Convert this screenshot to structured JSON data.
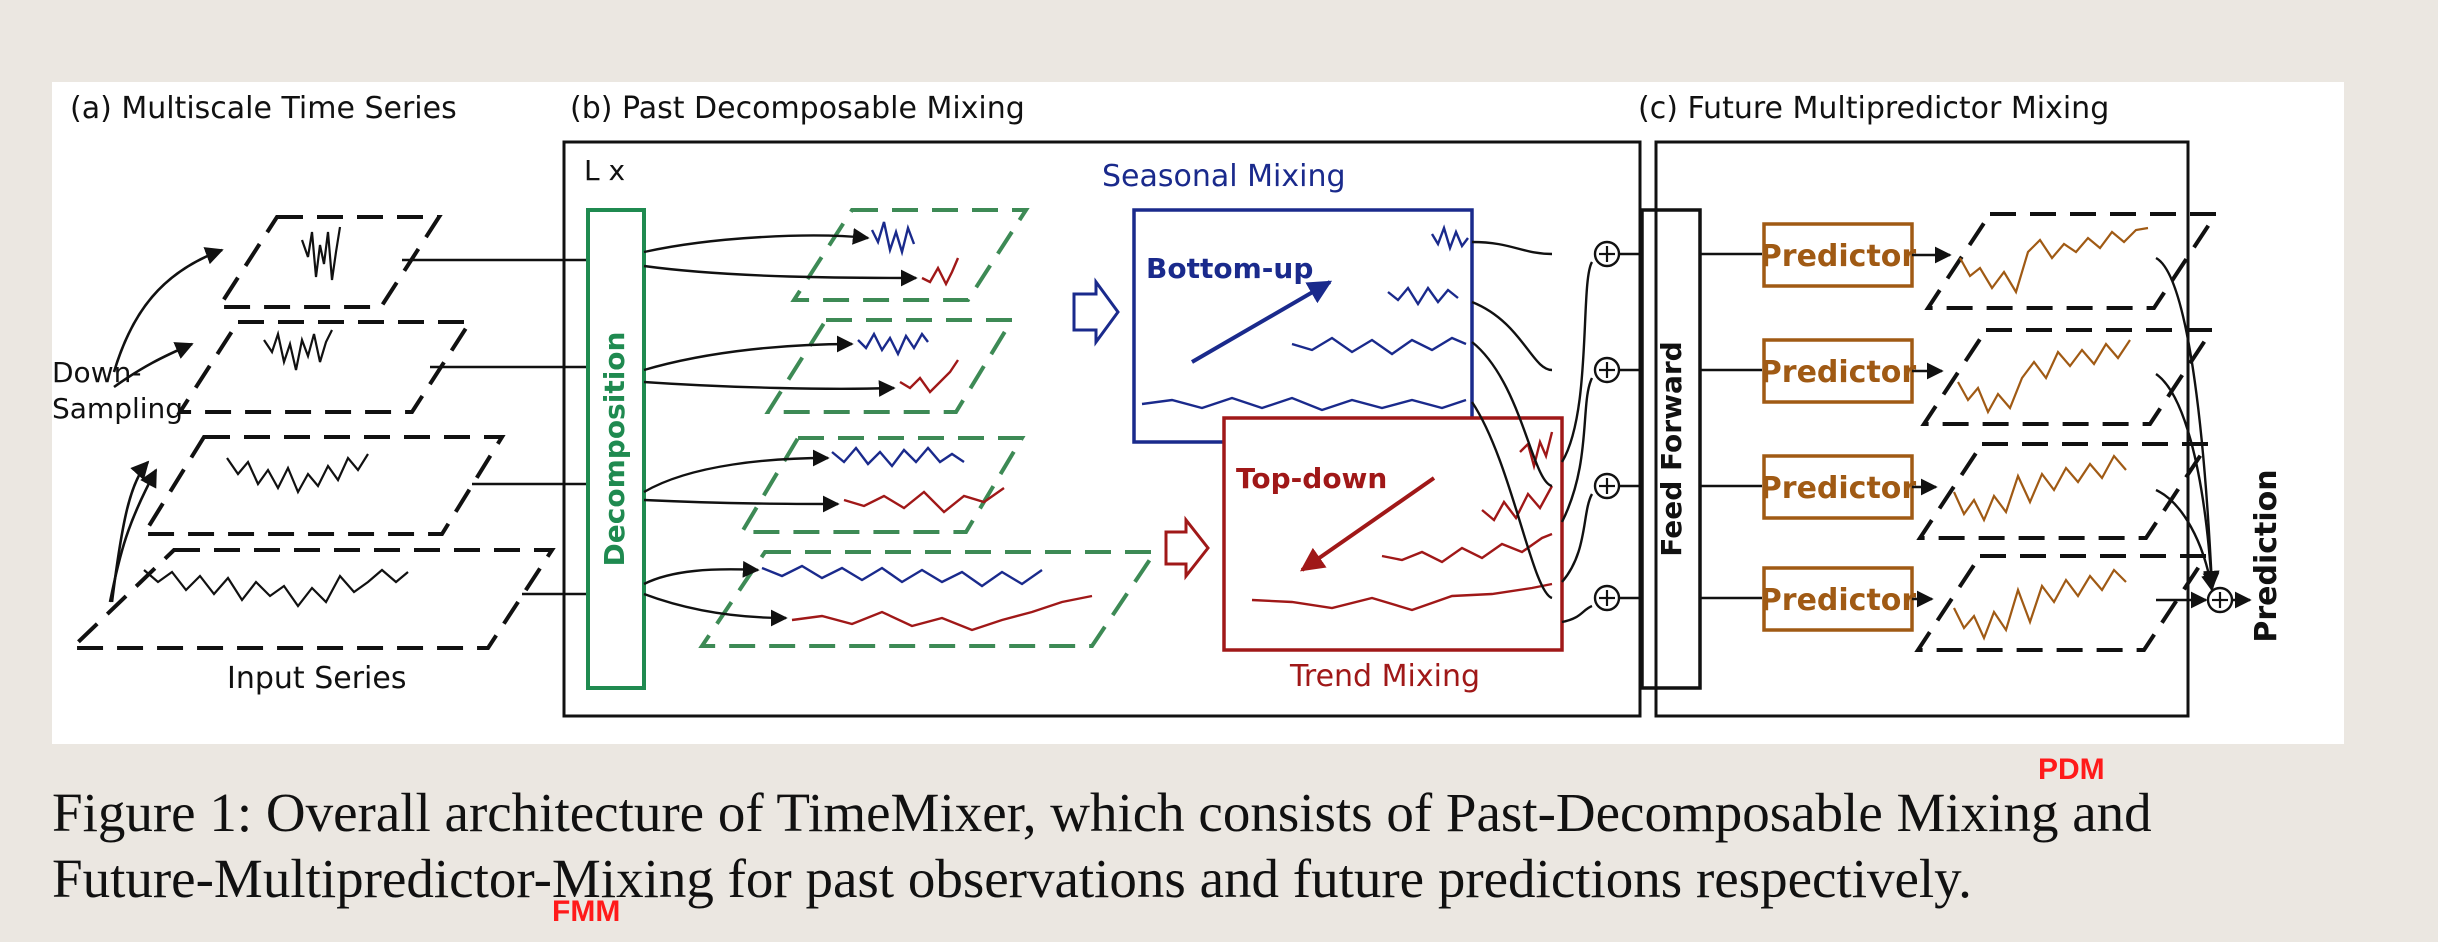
{
  "colors": {
    "seasonal": "#1a2a8c",
    "trend": "#a01818",
    "decomposition": "#1f8a50",
    "dashed_green": "#3d8a55",
    "predictor": "#a05a14",
    "annotation": "#ff1a1a",
    "ink": "#111111"
  },
  "sections": {
    "multiscale": {
      "title": "(a) Multiscale Time Series",
      "down_sampling_1": "Down-",
      "down_sampling_2": "Sampling",
      "input_series": "Input Series"
    },
    "past_mixing": {
      "title": "(b) Past Decomposable Mixing",
      "repeat_label": "L x",
      "decomposition": "Decomposition",
      "seasonal_title": "Seasonal Mixing",
      "bottom_up": "Bottom-up",
      "trend_title": "Trend Mixing",
      "top_down": "Top-down",
      "feed_forward": "Feed Forward"
    },
    "future_mixing": {
      "title": "(c) Future Multipredictor Mixing",
      "predictors": [
        "Predictor",
        "Predictor",
        "Predictor",
        "Predictor"
      ],
      "prediction": "Prediction"
    }
  },
  "caption": {
    "line1": "Figure 1: Overall architecture of TimeMixer, which consists of Past-Decomposable Mixing and",
    "line2": "Future-Multipredictor-Mixing for past observations and future predictions respectively."
  },
  "annotations": {
    "pdm": "PDM",
    "fmm": "FMM"
  }
}
